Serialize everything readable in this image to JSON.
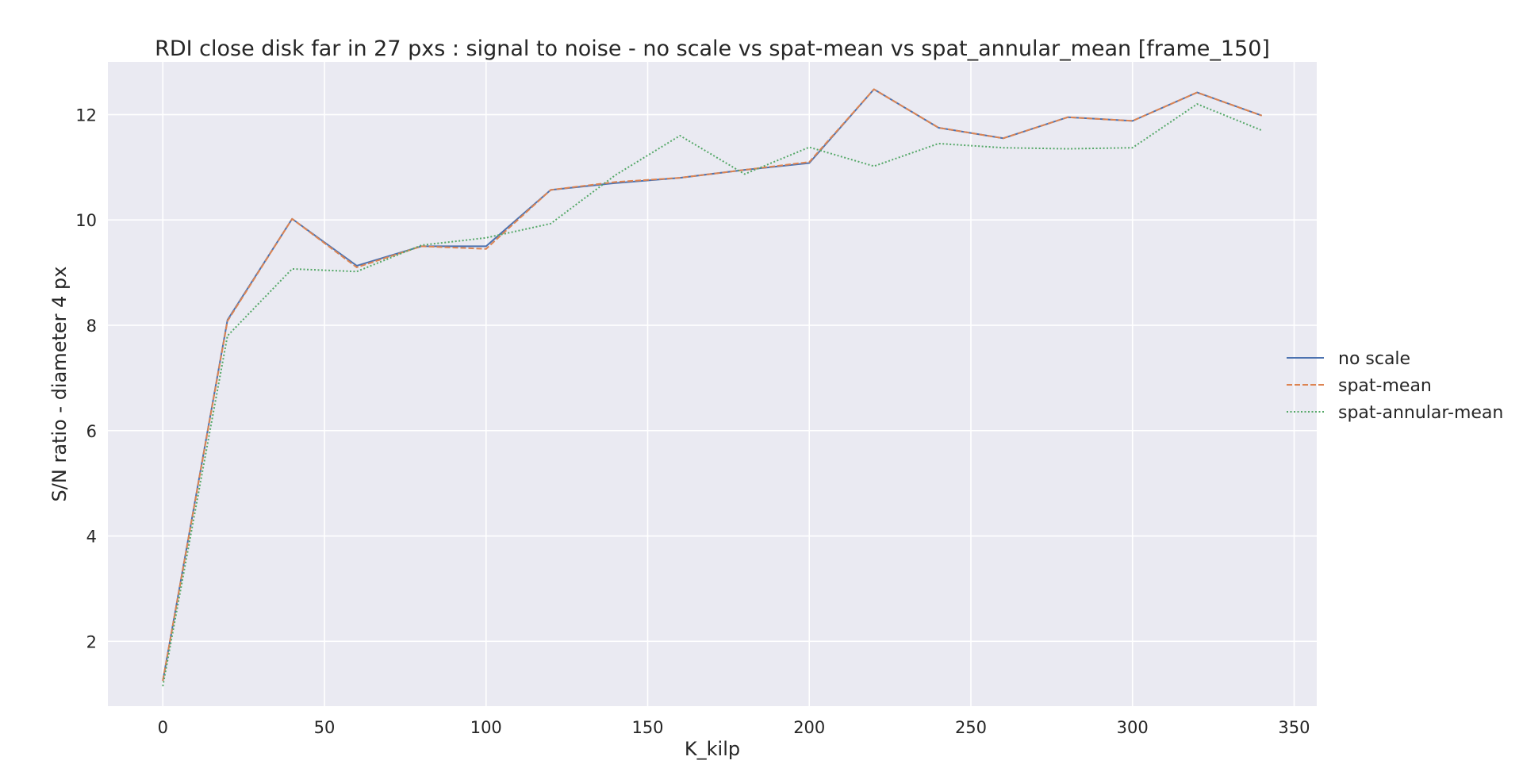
{
  "colors": {
    "background": "#eaeaf2",
    "grid": "#ffffff",
    "text": "#262626"
  },
  "chart_data": {
    "type": "line",
    "title": "RDI close disk far in 27 pxs : signal to noise - no scale vs spat-mean vs spat_annular_mean [frame_150]",
    "xlabel": "K_kilp",
    "ylabel": "S/N ratio - diameter 4 px",
    "xlim": [
      -17,
      357
    ],
    "ylim": [
      0.77,
      13.0
    ],
    "xticks": [
      0,
      50,
      100,
      150,
      200,
      250,
      300,
      350
    ],
    "yticks": [
      2,
      4,
      6,
      8,
      10,
      12
    ],
    "grid": true,
    "legend_position": "center-right",
    "x": [
      0,
      20,
      40,
      60,
      80,
      100,
      120,
      140,
      160,
      180,
      200,
      220,
      240,
      260,
      280,
      300,
      320,
      340
    ],
    "series": [
      {
        "name": "no scale",
        "color": "#4c72b0",
        "dash": "solid",
        "values": [
          1.25,
          8.1,
          10.02,
          9.13,
          9.5,
          9.5,
          10.57,
          10.7,
          10.8,
          10.95,
          11.08,
          12.48,
          11.75,
          11.55,
          11.95,
          11.88,
          12.42,
          11.98
        ]
      },
      {
        "name": "spat-mean",
        "color": "#dd8452",
        "dash": "dashed",
        "values": [
          1.25,
          8.08,
          10.02,
          9.1,
          9.5,
          9.45,
          10.57,
          10.72,
          10.8,
          10.95,
          11.1,
          12.48,
          11.75,
          11.55,
          11.95,
          11.88,
          12.42,
          11.98
        ]
      },
      {
        "name": "spat-annular-mean",
        "color": "#55a868",
        "dash": "dotted",
        "values": [
          1.15,
          7.8,
          9.07,
          9.02,
          9.52,
          9.66,
          9.93,
          10.85,
          11.6,
          10.87,
          11.38,
          11.02,
          11.45,
          11.37,
          11.35,
          11.37,
          12.2,
          11.7
        ]
      }
    ]
  }
}
